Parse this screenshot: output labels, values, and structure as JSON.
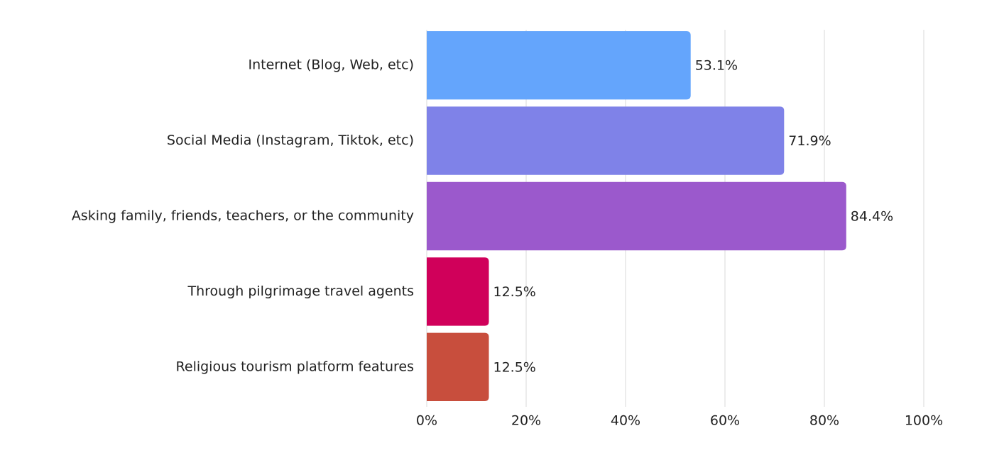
{
  "chart_data": {
    "type": "bar",
    "orientation": "horizontal",
    "categories": [
      "Internet (Blog, Web, etc)",
      "Social Media (Instagram, Tiktok, etc)",
      "Asking family, friends, teachers, or the community",
      "Through pilgrimage travel agents",
      "Religious tourism platform features"
    ],
    "values": [
      53.1,
      71.9,
      84.4,
      12.5,
      12.5
    ],
    "value_labels": [
      "53.1%",
      "71.9%",
      "84.4%",
      "12.5%",
      "12.5%"
    ],
    "colors": [
      "#64a5fc",
      "#7f82e8",
      "#9b59cc",
      "#d0005a",
      "#c84e3d"
    ],
    "xlim": [
      0,
      100
    ],
    "xticks": [
      {
        "value": 0,
        "label": "0%"
      },
      {
        "value": 20,
        "label": "20%"
      },
      {
        "value": 40,
        "label": "40%"
      },
      {
        "value": 60,
        "label": "60%"
      },
      {
        "value": 80,
        "label": "80%"
      },
      {
        "value": 100,
        "label": "100%"
      }
    ],
    "grid": true
  }
}
